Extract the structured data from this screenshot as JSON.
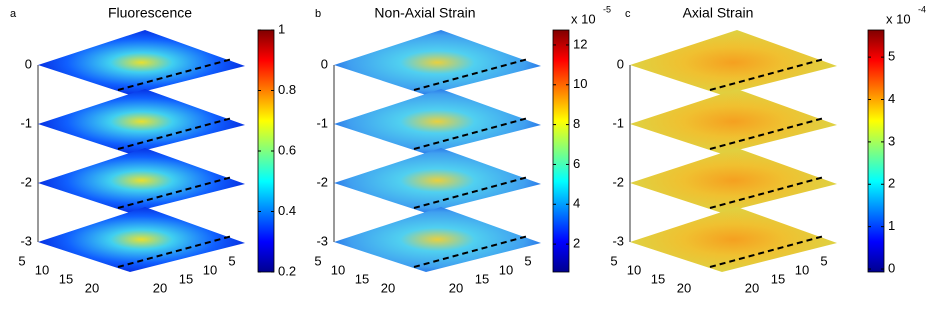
{
  "chart_data": [
    {
      "type": "slices",
      "label": "a",
      "title": "Fluorescence",
      "zticks": [
        0,
        -1,
        -2,
        -3
      ],
      "xticks": [
        5,
        10,
        15,
        20
      ],
      "yticks": [
        5,
        10,
        15,
        20
      ],
      "colorbar": {
        "lim": [
          0.2,
          1
        ],
        "ticks": [
          0.2,
          0.4,
          0.6,
          0.8,
          1
        ]
      }
    },
    {
      "type": "slices",
      "label": "b",
      "title": "Non-Axial Strain",
      "zticks": [
        0,
        -1,
        -2,
        -3
      ],
      "xticks": [
        5,
        10,
        15,
        20
      ],
      "yticks": [
        5,
        10,
        15,
        20
      ],
      "colorbar": {
        "lim": [
          0.6,
          12.75
        ],
        "ticks": [
          2,
          4,
          6,
          8,
          10,
          12
        ],
        "multiplier": "x 10",
        "exponent": "-5"
      }
    },
    {
      "type": "slices",
      "label": "c",
      "title": "Axial Strain",
      "zticks": [
        0,
        -1,
        -2,
        -3
      ],
      "xticks": [
        5,
        10,
        15,
        20
      ],
      "yticks": [
        5,
        10,
        15,
        20
      ],
      "colorbar": {
        "lim": [
          -0.07,
          5.64
        ],
        "ticks": [
          0,
          1,
          2,
          3,
          4,
          5
        ],
        "multiplier": "x 10",
        "exponent": "-4"
      }
    }
  ]
}
